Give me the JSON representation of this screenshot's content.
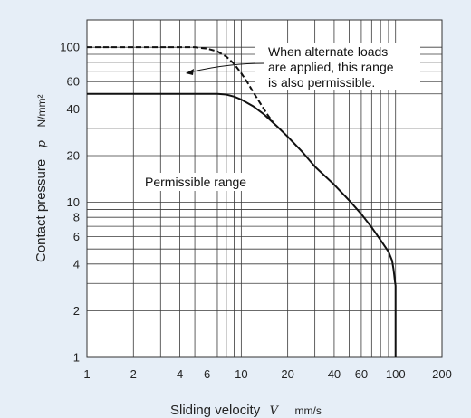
{
  "chart_data": {
    "type": "line",
    "x_scale": "log",
    "y_scale": "log",
    "xlim": [
      1,
      200
    ],
    "ylim": [
      1,
      150
    ],
    "grid": true,
    "xlabel": "Sliding velocity",
    "xlabel_symbol": "V",
    "xlabel_unit": "mm/s",
    "ylabel": "Contact pressure",
    "ylabel_symbol": "p",
    "ylabel_unit": "N/mm²",
    "x_ticks": [
      1,
      2,
      4,
      6,
      10,
      20,
      40,
      60,
      100,
      200
    ],
    "x_tick_labels": [
      "1",
      "2",
      "4",
      "6",
      "10",
      "20",
      "40",
      "60",
      "100",
      "200"
    ],
    "y_ticks": [
      1,
      2,
      4,
      6,
      8,
      10,
      20,
      40,
      60,
      100
    ],
    "y_tick_labels": [
      "1",
      "2",
      "4",
      "6",
      "8",
      "10",
      "20",
      "40",
      "60",
      "100"
    ],
    "series": [
      {
        "style": "solid",
        "x": [
          1,
          7,
          8,
          9,
          10,
          12,
          14,
          17,
          20,
          25,
          30,
          40,
          50,
          60,
          70,
          80,
          90,
          95,
          97,
          98,
          99,
          100,
          100
        ],
        "y": [
          50,
          50,
          49.5,
          48,
          46,
          41.5,
          37,
          31,
          26.5,
          21,
          17,
          13,
          10.3,
          8.4,
          6.9,
          5.7,
          4.8,
          4.2,
          3.7,
          3.4,
          3.1,
          2.9,
          1
        ]
      },
      {
        "style": "dashed",
        "x": [
          1,
          5,
          6,
          7,
          8,
          9,
          10,
          11,
          12,
          13,
          14,
          15,
          16
        ],
        "y": [
          100,
          100,
          98,
          94,
          87,
          78,
          68,
          59,
          51,
          45,
          40,
          36,
          33
        ]
      }
    ],
    "annotations": [
      {
        "lines": [
          "When alternate loads",
          "are applied, this range",
          "is also permissible."
        ],
        "arrow": true
      },
      {
        "lines": [
          "Permissible range"
        ],
        "arrow": false
      }
    ]
  }
}
